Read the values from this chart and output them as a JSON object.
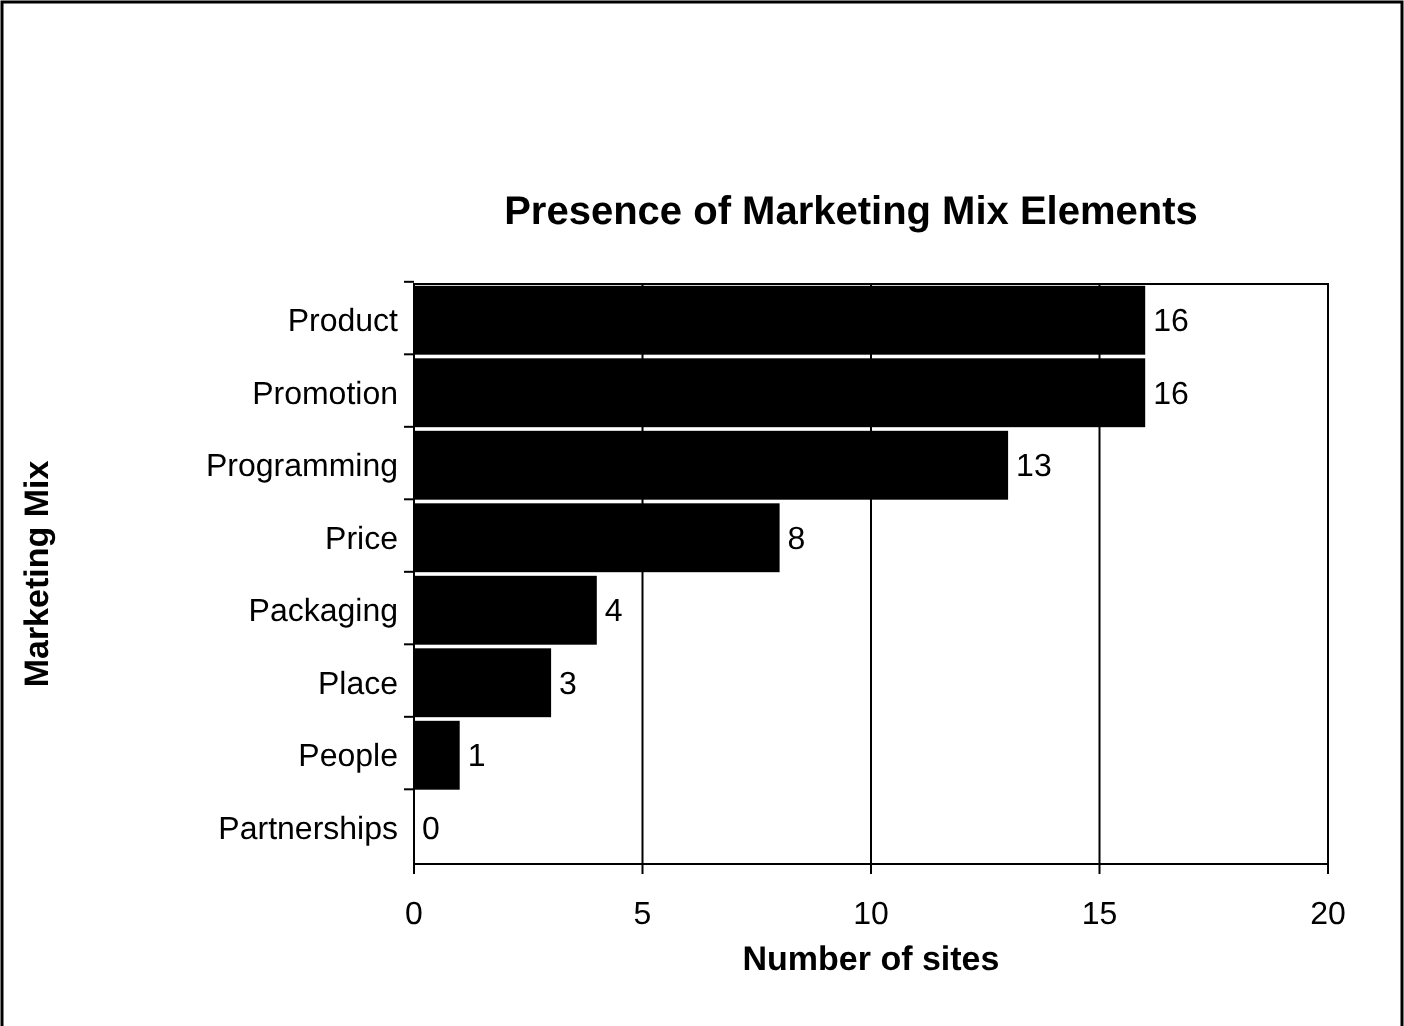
{
  "chart_data": {
    "type": "bar",
    "orientation": "horizontal",
    "title": "Presence of Marketing Mix Elements",
    "xlabel": "Number of sites",
    "ylabel": "Marketing Mix",
    "categories": [
      "Product",
      "Promotion",
      "Programming",
      "Price",
      "Packaging",
      "Place",
      "People",
      "Partnerships"
    ],
    "values": [
      16,
      16,
      13,
      8,
      4,
      3,
      1,
      0
    ],
    "color": "#000000",
    "xlim": [
      0,
      20
    ],
    "xticks": [
      0,
      5,
      10,
      15,
      20
    ],
    "grid": "x",
    "data_labels": true
  }
}
